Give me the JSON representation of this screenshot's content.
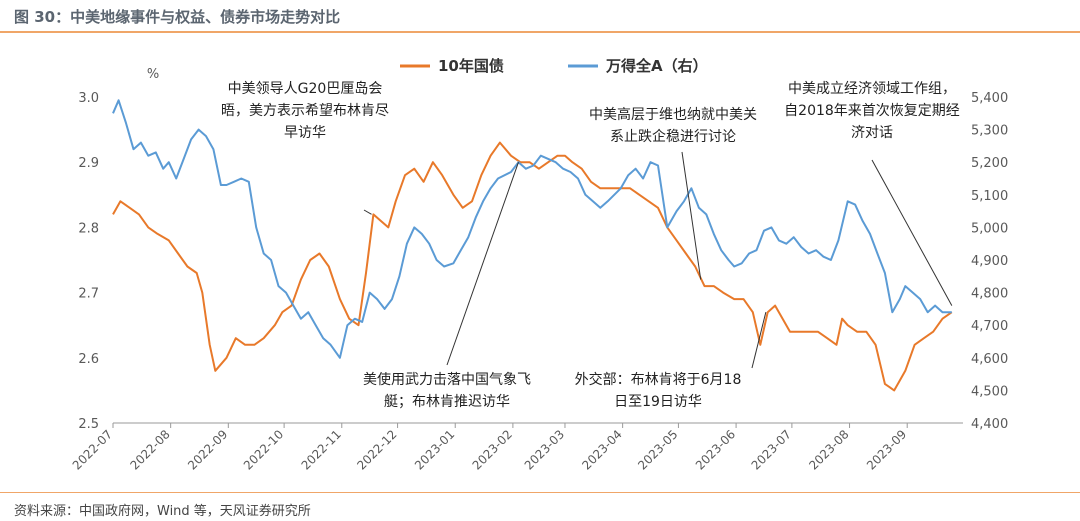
{
  "figure": {
    "title": "图 30：中美地缘事件与权益、债券市场走势对比",
    "source": "资料来源：中国政府网，Wind 等，天风证券研究所"
  },
  "colors": {
    "bond": "#e8792a",
    "equity": "#5b9bd5",
    "accent": "#f0a668",
    "axis": "#595959"
  },
  "chart_data": {
    "type": "line",
    "title": "",
    "x": {
      "tick_labels": [
        "2022-07",
        "2022-08",
        "2022-09",
        "2022-10",
        "2022-11",
        "2022-12",
        "2023-01",
        "2023-02",
        "2023-03",
        "2023-04",
        "2023-05",
        "2023-06",
        "2023-07",
        "2023-08",
        "2023-09"
      ],
      "range": [
        "2022-07",
        "2023-10"
      ]
    },
    "y_left": {
      "label": "%",
      "ylim": [
        2.5,
        3.0
      ],
      "ticks": [
        "2.5",
        "2.6",
        "2.7",
        "2.8",
        "2.9",
        "3.0"
      ]
    },
    "y_right": {
      "label": "",
      "ylim": [
        4400,
        5400
      ],
      "ticks": [
        "4,400",
        "4,500",
        "4,600",
        "4,700",
        "4,800",
        "4,900",
        "5,000",
        "5,100",
        "5,200",
        "5,300",
        "5,400"
      ]
    },
    "legend": {
      "position": "top"
    },
    "grid": false,
    "series": [
      {
        "name": "10年国债",
        "axis": "left",
        "color": "#e8792a",
        "points": [
          [
            "2022-07-01",
            2.82
          ],
          [
            "2022-07-05",
            2.84
          ],
          [
            "2022-07-10",
            2.83
          ],
          [
            "2022-07-15",
            2.82
          ],
          [
            "2022-07-20",
            2.8
          ],
          [
            "2022-07-25",
            2.79
          ],
          [
            "2022-07-31",
            2.78
          ],
          [
            "2022-08-05",
            2.76
          ],
          [
            "2022-08-10",
            2.74
          ],
          [
            "2022-08-15",
            2.73
          ],
          [
            "2022-08-18",
            2.7
          ],
          [
            "2022-08-22",
            2.62
          ],
          [
            "2022-08-25",
            2.58
          ],
          [
            "2022-08-31",
            2.6
          ],
          [
            "2022-09-05",
            2.63
          ],
          [
            "2022-09-10",
            2.62
          ],
          [
            "2022-09-15",
            2.62
          ],
          [
            "2022-09-20",
            2.63
          ],
          [
            "2022-09-26",
            2.65
          ],
          [
            "2022-09-30",
            2.67
          ],
          [
            "2022-10-05",
            2.68
          ],
          [
            "2022-10-10",
            2.72
          ],
          [
            "2022-10-15",
            2.75
          ],
          [
            "2022-10-20",
            2.76
          ],
          [
            "2022-10-25",
            2.74
          ],
          [
            "2022-10-31",
            2.69
          ],
          [
            "2022-11-05",
            2.66
          ],
          [
            "2022-11-10",
            2.65
          ],
          [
            "2022-11-14",
            2.73
          ],
          [
            "2022-11-18",
            2.82
          ],
          [
            "2022-11-22",
            2.81
          ],
          [
            "2022-11-26",
            2.8
          ],
          [
            "2022-11-30",
            2.84
          ],
          [
            "2022-12-05",
            2.88
          ],
          [
            "2022-12-10",
            2.89
          ],
          [
            "2022-12-15",
            2.87
          ],
          [
            "2022-12-20",
            2.9
          ],
          [
            "2022-12-25",
            2.88
          ],
          [
            "2022-12-31",
            2.85
          ],
          [
            "2023-01-05",
            2.83
          ],
          [
            "2023-01-10",
            2.84
          ],
          [
            "2023-01-15",
            2.88
          ],
          [
            "2023-01-20",
            2.91
          ],
          [
            "2023-01-25",
            2.93
          ],
          [
            "2023-01-31",
            2.91
          ],
          [
            "2023-02-05",
            2.9
          ],
          [
            "2023-02-10",
            2.9
          ],
          [
            "2023-02-15",
            2.89
          ],
          [
            "2023-02-20",
            2.9
          ],
          [
            "2023-02-25",
            2.91
          ],
          [
            "2023-03-01",
            2.91
          ],
          [
            "2023-03-05",
            2.9
          ],
          [
            "2023-03-10",
            2.89
          ],
          [
            "2023-03-15",
            2.87
          ],
          [
            "2023-03-20",
            2.86
          ],
          [
            "2023-03-25",
            2.86
          ],
          [
            "2023-03-31",
            2.86
          ],
          [
            "2023-04-05",
            2.86
          ],
          [
            "2023-04-10",
            2.85
          ],
          [
            "2023-04-15",
            2.84
          ],
          [
            "2023-04-20",
            2.83
          ],
          [
            "2023-04-25",
            2.8
          ],
          [
            "2023-04-30",
            2.78
          ],
          [
            "2023-05-05",
            2.76
          ],
          [
            "2023-05-10",
            2.74
          ],
          [
            "2023-05-15",
            2.71
          ],
          [
            "2023-05-20",
            2.71
          ],
          [
            "2023-05-25",
            2.7
          ],
          [
            "2023-05-31",
            2.69
          ],
          [
            "2023-06-05",
            2.69
          ],
          [
            "2023-06-10",
            2.67
          ],
          [
            "2023-06-14",
            2.62
          ],
          [
            "2023-06-18",
            2.67
          ],
          [
            "2023-06-22",
            2.68
          ],
          [
            "2023-06-26",
            2.66
          ],
          [
            "2023-06-30",
            2.64
          ],
          [
            "2023-07-05",
            2.64
          ],
          [
            "2023-07-10",
            2.64
          ],
          [
            "2023-07-15",
            2.64
          ],
          [
            "2023-07-20",
            2.63
          ],
          [
            "2023-07-25",
            2.62
          ],
          [
            "2023-07-28",
            2.66
          ],
          [
            "2023-07-31",
            2.65
          ],
          [
            "2023-08-05",
            2.64
          ],
          [
            "2023-08-10",
            2.64
          ],
          [
            "2023-08-15",
            2.62
          ],
          [
            "2023-08-20",
            2.56
          ],
          [
            "2023-08-25",
            2.55
          ],
          [
            "2023-08-31",
            2.58
          ],
          [
            "2023-09-05",
            2.62
          ],
          [
            "2023-09-10",
            2.63
          ],
          [
            "2023-09-15",
            2.64
          ],
          [
            "2023-09-20",
            2.66
          ],
          [
            "2023-09-25",
            2.67
          ]
        ]
      },
      {
        "name": "万得全A（右）",
        "axis": "right",
        "color": "#5b9bd5",
        "points": [
          [
            "2022-07-01",
            5350
          ],
          [
            "2022-07-04",
            5390
          ],
          [
            "2022-07-08",
            5320
          ],
          [
            "2022-07-12",
            5240
          ],
          [
            "2022-07-16",
            5260
          ],
          [
            "2022-07-20",
            5220
          ],
          [
            "2022-07-24",
            5230
          ],
          [
            "2022-07-28",
            5180
          ],
          [
            "2022-07-31",
            5200
          ],
          [
            "2022-08-04",
            5150
          ],
          [
            "2022-08-08",
            5210
          ],
          [
            "2022-08-12",
            5270
          ],
          [
            "2022-08-16",
            5300
          ],
          [
            "2022-08-20",
            5280
          ],
          [
            "2022-08-24",
            5240
          ],
          [
            "2022-08-28",
            5130
          ],
          [
            "2022-08-31",
            5130
          ],
          [
            "2022-09-04",
            5140
          ],
          [
            "2022-09-08",
            5150
          ],
          [
            "2022-09-12",
            5140
          ],
          [
            "2022-09-16",
            5000
          ],
          [
            "2022-09-20",
            4920
          ],
          [
            "2022-09-24",
            4900
          ],
          [
            "2022-09-28",
            4820
          ],
          [
            "2022-10-02",
            4800
          ],
          [
            "2022-10-06",
            4760
          ],
          [
            "2022-10-10",
            4720
          ],
          [
            "2022-10-14",
            4740
          ],
          [
            "2022-10-18",
            4700
          ],
          [
            "2022-10-22",
            4660
          ],
          [
            "2022-10-26",
            4640
          ],
          [
            "2022-10-31",
            4600
          ],
          [
            "2022-11-04",
            4700
          ],
          [
            "2022-11-08",
            4720
          ],
          [
            "2022-11-12",
            4710
          ],
          [
            "2022-11-16",
            4800
          ],
          [
            "2022-11-20",
            4780
          ],
          [
            "2022-11-24",
            4750
          ],
          [
            "2022-11-28",
            4780
          ],
          [
            "2022-12-02",
            4850
          ],
          [
            "2022-12-06",
            4950
          ],
          [
            "2022-12-10",
            5000
          ],
          [
            "2022-12-14",
            4980
          ],
          [
            "2022-12-18",
            4950
          ],
          [
            "2022-12-22",
            4900
          ],
          [
            "2022-12-26",
            4880
          ],
          [
            "2022-12-31",
            4890
          ],
          [
            "2023-01-04",
            4930
          ],
          [
            "2023-01-08",
            4970
          ],
          [
            "2023-01-12",
            5030
          ],
          [
            "2023-01-16",
            5080
          ],
          [
            "2023-01-20",
            5120
          ],
          [
            "2023-01-24",
            5150
          ],
          [
            "2023-01-31",
            5170
          ],
          [
            "2023-02-04",
            5200
          ],
          [
            "2023-02-08",
            5180
          ],
          [
            "2023-02-12",
            5190
          ],
          [
            "2023-02-16",
            5220
          ],
          [
            "2023-02-20",
            5210
          ],
          [
            "2023-02-24",
            5200
          ],
          [
            "2023-02-28",
            5180
          ],
          [
            "2023-03-04",
            5170
          ],
          [
            "2023-03-08",
            5150
          ],
          [
            "2023-03-12",
            5100
          ],
          [
            "2023-03-16",
            5080
          ],
          [
            "2023-03-20",
            5060
          ],
          [
            "2023-03-24",
            5080
          ],
          [
            "2023-03-31",
            5120
          ],
          [
            "2023-04-04",
            5160
          ],
          [
            "2023-04-08",
            5180
          ],
          [
            "2023-04-12",
            5150
          ],
          [
            "2023-04-16",
            5200
          ],
          [
            "2023-04-20",
            5190
          ],
          [
            "2023-04-25",
            5000
          ],
          [
            "2023-04-30",
            5050
          ],
          [
            "2023-05-04",
            5080
          ],
          [
            "2023-05-08",
            5120
          ],
          [
            "2023-05-12",
            5060
          ],
          [
            "2023-05-16",
            5040
          ],
          [
            "2023-05-20",
            4980
          ],
          [
            "2023-05-24",
            4930
          ],
          [
            "2023-05-28",
            4900
          ],
          [
            "2023-05-31",
            4880
          ],
          [
            "2023-06-04",
            4890
          ],
          [
            "2023-06-08",
            4920
          ],
          [
            "2023-06-12",
            4930
          ],
          [
            "2023-06-16",
            4990
          ],
          [
            "2023-06-20",
            5000
          ],
          [
            "2023-06-24",
            4960
          ],
          [
            "2023-06-28",
            4950
          ],
          [
            "2023-07-02",
            4970
          ],
          [
            "2023-07-06",
            4940
          ],
          [
            "2023-07-10",
            4920
          ],
          [
            "2023-07-14",
            4930
          ],
          [
            "2023-07-18",
            4910
          ],
          [
            "2023-07-22",
            4900
          ],
          [
            "2023-07-26",
            4960
          ],
          [
            "2023-07-31",
            5080
          ],
          [
            "2023-08-04",
            5070
          ],
          [
            "2023-08-08",
            5020
          ],
          [
            "2023-08-12",
            4980
          ],
          [
            "2023-08-16",
            4920
          ],
          [
            "2023-08-20",
            4860
          ],
          [
            "2023-08-24",
            4740
          ],
          [
            "2023-08-28",
            4780
          ],
          [
            "2023-08-31",
            4820
          ],
          [
            "2023-09-04",
            4800
          ],
          [
            "2023-09-08",
            4780
          ],
          [
            "2023-09-12",
            4740
          ],
          [
            "2023-09-16",
            4760
          ],
          [
            "2023-09-20",
            4740
          ],
          [
            "2023-09-25",
            4740
          ]
        ]
      }
    ],
    "annotations": [
      {
        "lines": [
          "中美领导人G20巴厘岛会",
          "晤，美方表示希望布林肯尽",
          "早访华"
        ],
        "target": [
          "2022-11-17",
          2.82
        ]
      },
      {
        "lines": [
          "美使用武力击落中国气象飞",
          "艇；布林肯推迟访华"
        ],
        "target": [
          "2023-02-04",
          2.9
        ]
      },
      {
        "lines": [
          "中美高层于维也纳就中美关",
          "系止跌企稳进行讨论"
        ],
        "target": [
          "2023-05-13",
          2.72
        ]
      },
      {
        "lines": [
          "外交部：布林肯将于6月18",
          "日至19日访华"
        ],
        "target": [
          "2023-06-17",
          2.67
        ]
      },
      {
        "lines": [
          "中美成立经济领域工作组，",
          "自2018年来首次恢复定期经",
          "济对话"
        ],
        "target": [
          "2023-09-25",
          2.68
        ]
      }
    ]
  }
}
